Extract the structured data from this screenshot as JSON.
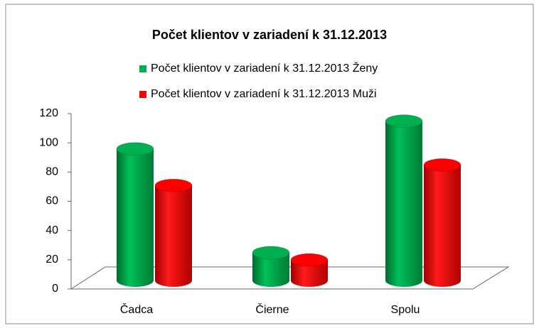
{
  "chart_data": {
    "type": "bar3d",
    "title": "Počet klientov v zariadení k 31.12.2013",
    "categories": [
      "Čadca",
      "Čierne",
      "Spolu"
    ],
    "series": [
      {
        "name": "Počet klientov v zariadení k 31.12.2013 Ženy",
        "color": "#00b050",
        "values": [
          90,
          19,
          109
        ]
      },
      {
        "name": "Počet klientov v zariadení k 31.12.2013 Muži",
        "color": "#ff0000",
        "values": [
          65,
          14,
          79
        ]
      }
    ],
    "ylim": [
      0,
      120
    ],
    "yticks": [
      0,
      20,
      40,
      60,
      80,
      100,
      120
    ]
  }
}
